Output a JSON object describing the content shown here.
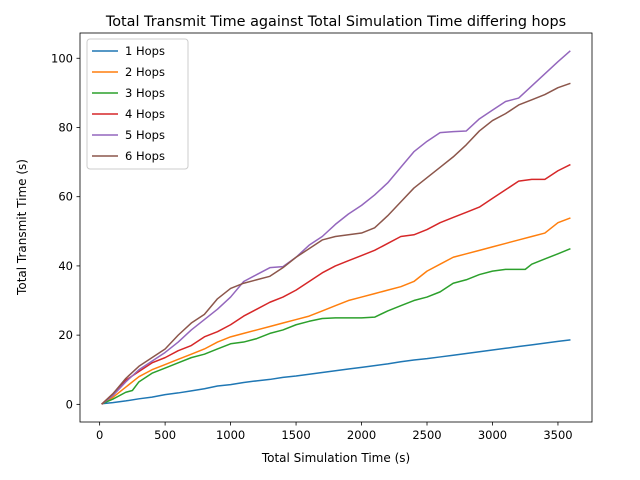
{
  "chart_data": {
    "type": "line",
    "title": "Total Transmit Time against Total Simulation Time differing hops",
    "xlabel": "Total Simulation Time (s)",
    "ylabel": "Total Transmit Time (s)",
    "xlim": [
      -150,
      3760
    ],
    "ylim": [
      -5.1,
      107.3
    ],
    "xticks": [
      0,
      500,
      1000,
      1500,
      2000,
      2500,
      3000,
      3500
    ],
    "xtick_labels": [
      "0",
      "500",
      "1000",
      "1500",
      "2000",
      "2500",
      "3000",
      "3500"
    ],
    "yticks": [
      0,
      20,
      40,
      60,
      80,
      100
    ],
    "ytick_labels": [
      "0",
      "20",
      "40",
      "60",
      "80",
      "100"
    ],
    "grid": false,
    "legend_position": "top-left",
    "series": [
      {
        "name": "1 Hops",
        "color": "#1f77b4",
        "points": [
          [
            20,
            0.2
          ],
          [
            100,
            0.5
          ],
          [
            200,
            1.0
          ],
          [
            300,
            1.6
          ],
          [
            400,
            2.1
          ],
          [
            500,
            2.8
          ],
          [
            600,
            3.3
          ],
          [
            700,
            3.9
          ],
          [
            800,
            4.5
          ],
          [
            900,
            5.3
          ],
          [
            1000,
            5.7
          ],
          [
            1100,
            6.3
          ],
          [
            1200,
            6.8
          ],
          [
            1300,
            7.2
          ],
          [
            1400,
            7.8
          ],
          [
            1500,
            8.2
          ],
          [
            1600,
            8.7
          ],
          [
            1700,
            9.2
          ],
          [
            1800,
            9.7
          ],
          [
            1900,
            10.2
          ],
          [
            2000,
            10.7
          ],
          [
            2100,
            11.2
          ],
          [
            2200,
            11.7
          ],
          [
            2300,
            12.3
          ],
          [
            2400,
            12.8
          ],
          [
            2500,
            13.2
          ],
          [
            2600,
            13.7
          ],
          [
            2700,
            14.2
          ],
          [
            2800,
            14.7
          ],
          [
            2900,
            15.2
          ],
          [
            3000,
            15.7
          ],
          [
            3100,
            16.2
          ],
          [
            3200,
            16.7
          ],
          [
            3300,
            17.2
          ],
          [
            3400,
            17.7
          ],
          [
            3500,
            18.2
          ],
          [
            3590,
            18.6
          ]
        ]
      },
      {
        "name": "2 Hops",
        "color": "#ff7f0e",
        "points": [
          [
            20,
            0.2
          ],
          [
            100,
            2.0
          ],
          [
            200,
            5.0
          ],
          [
            300,
            8.0
          ],
          [
            400,
            10.0
          ],
          [
            500,
            11.5
          ],
          [
            600,
            13.0
          ],
          [
            700,
            14.5
          ],
          [
            800,
            16.0
          ],
          [
            900,
            18.0
          ],
          [
            1000,
            19.5
          ],
          [
            1100,
            20.5
          ],
          [
            1200,
            21.5
          ],
          [
            1300,
            22.5
          ],
          [
            1400,
            23.5
          ],
          [
            1500,
            24.5
          ],
          [
            1600,
            25.5
          ],
          [
            1700,
            27.0
          ],
          [
            1800,
            28.5
          ],
          [
            1900,
            30.0
          ],
          [
            2000,
            31.0
          ],
          [
            2100,
            32.0
          ],
          [
            2200,
            33.0
          ],
          [
            2300,
            34.0
          ],
          [
            2400,
            35.5
          ],
          [
            2500,
            38.5
          ],
          [
            2600,
            40.5
          ],
          [
            2700,
            42.5
          ],
          [
            2800,
            43.5
          ],
          [
            2900,
            44.5
          ],
          [
            3000,
            45.5
          ],
          [
            3100,
            46.5
          ],
          [
            3200,
            47.5
          ],
          [
            3300,
            48.5
          ],
          [
            3400,
            49.5
          ],
          [
            3500,
            52.5
          ],
          [
            3590,
            53.8
          ]
        ]
      },
      {
        "name": "3 Hops",
        "color": "#2ca02c",
        "points": [
          [
            20,
            0.2
          ],
          [
            100,
            1.5
          ],
          [
            200,
            3.5
          ],
          [
            250,
            4.0
          ],
          [
            300,
            6.5
          ],
          [
            400,
            9.0
          ],
          [
            500,
            10.5
          ],
          [
            600,
            12.0
          ],
          [
            700,
            13.5
          ],
          [
            800,
            14.5
          ],
          [
            900,
            16.0
          ],
          [
            1000,
            17.5
          ],
          [
            1100,
            18.0
          ],
          [
            1200,
            19.0
          ],
          [
            1300,
            20.5
          ],
          [
            1400,
            21.5
          ],
          [
            1500,
            23.0
          ],
          [
            1600,
            24.0
          ],
          [
            1700,
            24.8
          ],
          [
            1800,
            25.0
          ],
          [
            1900,
            25.0
          ],
          [
            2000,
            25.0
          ],
          [
            2100,
            25.2
          ],
          [
            2200,
            27.0
          ],
          [
            2300,
            28.5
          ],
          [
            2400,
            30.0
          ],
          [
            2500,
            31.0
          ],
          [
            2600,
            32.5
          ],
          [
            2700,
            35.0
          ],
          [
            2800,
            36.0
          ],
          [
            2900,
            37.5
          ],
          [
            3000,
            38.5
          ],
          [
            3100,
            39.0
          ],
          [
            3200,
            39.0
          ],
          [
            3250,
            39.0
          ],
          [
            3300,
            40.5
          ],
          [
            3400,
            42.0
          ],
          [
            3500,
            43.5
          ],
          [
            3590,
            44.9
          ]
        ]
      },
      {
        "name": "4 Hops",
        "color": "#d62728",
        "points": [
          [
            20,
            0.2
          ],
          [
            100,
            3.0
          ],
          [
            200,
            7.0
          ],
          [
            300,
            9.5
          ],
          [
            400,
            12.0
          ],
          [
            500,
            13.5
          ],
          [
            600,
            15.5
          ],
          [
            700,
            17.0
          ],
          [
            800,
            19.5
          ],
          [
            900,
            21.0
          ],
          [
            1000,
            23.0
          ],
          [
            1100,
            25.5
          ],
          [
            1200,
            27.5
          ],
          [
            1300,
            29.5
          ],
          [
            1400,
            31.0
          ],
          [
            1500,
            33.0
          ],
          [
            1600,
            35.5
          ],
          [
            1700,
            38.0
          ],
          [
            1800,
            40.0
          ],
          [
            1900,
            41.5
          ],
          [
            2000,
            43.0
          ],
          [
            2100,
            44.5
          ],
          [
            2200,
            46.5
          ],
          [
            2300,
            48.5
          ],
          [
            2400,
            49.0
          ],
          [
            2500,
            50.5
          ],
          [
            2600,
            52.5
          ],
          [
            2700,
            54.0
          ],
          [
            2800,
            55.5
          ],
          [
            2900,
            57.0
          ],
          [
            3000,
            59.5
          ],
          [
            3100,
            62.0
          ],
          [
            3200,
            64.5
          ],
          [
            3300,
            65.0
          ],
          [
            3400,
            65.0
          ],
          [
            3500,
            67.5
          ],
          [
            3590,
            69.2
          ]
        ]
      },
      {
        "name": "5 Hops",
        "color": "#9467bd",
        "points": [
          [
            20,
            0.2
          ],
          [
            100,
            2.5
          ],
          [
            200,
            6.5
          ],
          [
            300,
            10.0
          ],
          [
            400,
            12.5
          ],
          [
            500,
            15.0
          ],
          [
            600,
            18.0
          ],
          [
            700,
            21.5
          ],
          [
            800,
            24.5
          ],
          [
            900,
            27.5
          ],
          [
            1000,
            31.0
          ],
          [
            1100,
            35.5
          ],
          [
            1200,
            37.5
          ],
          [
            1300,
            39.5
          ],
          [
            1400,
            39.8
          ],
          [
            1500,
            42.5
          ],
          [
            1600,
            46.0
          ],
          [
            1700,
            48.5
          ],
          [
            1800,
            52.0
          ],
          [
            1900,
            55.0
          ],
          [
            2000,
            57.5
          ],
          [
            2100,
            60.5
          ],
          [
            2200,
            64.0
          ],
          [
            2300,
            68.5
          ],
          [
            2400,
            73.0
          ],
          [
            2500,
            76.0
          ],
          [
            2600,
            78.5
          ],
          [
            2700,
            78.8
          ],
          [
            2800,
            79.0
          ],
          [
            2900,
            82.5
          ],
          [
            3000,
            85.0
          ],
          [
            3100,
            87.5
          ],
          [
            3200,
            88.5
          ],
          [
            3300,
            92.0
          ],
          [
            3400,
            95.5
          ],
          [
            3500,
            99.0
          ],
          [
            3590,
            102.0
          ]
        ]
      },
      {
        "name": "6 Hops",
        "color": "#8c564b",
        "points": [
          [
            20,
            0.2
          ],
          [
            100,
            3.0
          ],
          [
            200,
            7.5
          ],
          [
            300,
            11.0
          ],
          [
            400,
            13.5
          ],
          [
            500,
            16.0
          ],
          [
            600,
            20.0
          ],
          [
            700,
            23.5
          ],
          [
            800,
            26.0
          ],
          [
            900,
            30.5
          ],
          [
            1000,
            33.5
          ],
          [
            1100,
            35.0
          ],
          [
            1200,
            36.0
          ],
          [
            1300,
            37.0
          ],
          [
            1400,
            39.5
          ],
          [
            1500,
            42.5
          ],
          [
            1600,
            45.0
          ],
          [
            1700,
            47.5
          ],
          [
            1800,
            48.5
          ],
          [
            1900,
            49.0
          ],
          [
            2000,
            49.5
          ],
          [
            2100,
            51.0
          ],
          [
            2200,
            54.5
          ],
          [
            2300,
            58.5
          ],
          [
            2400,
            62.5
          ],
          [
            2500,
            65.5
          ],
          [
            2600,
            68.5
          ],
          [
            2700,
            71.5
          ],
          [
            2800,
            75.0
          ],
          [
            2900,
            79.0
          ],
          [
            3000,
            82.0
          ],
          [
            3100,
            84.0
          ],
          [
            3200,
            86.5
          ],
          [
            3300,
            88.0
          ],
          [
            3400,
            89.5
          ],
          [
            3500,
            91.5
          ],
          [
            3590,
            92.7
          ]
        ]
      }
    ]
  }
}
